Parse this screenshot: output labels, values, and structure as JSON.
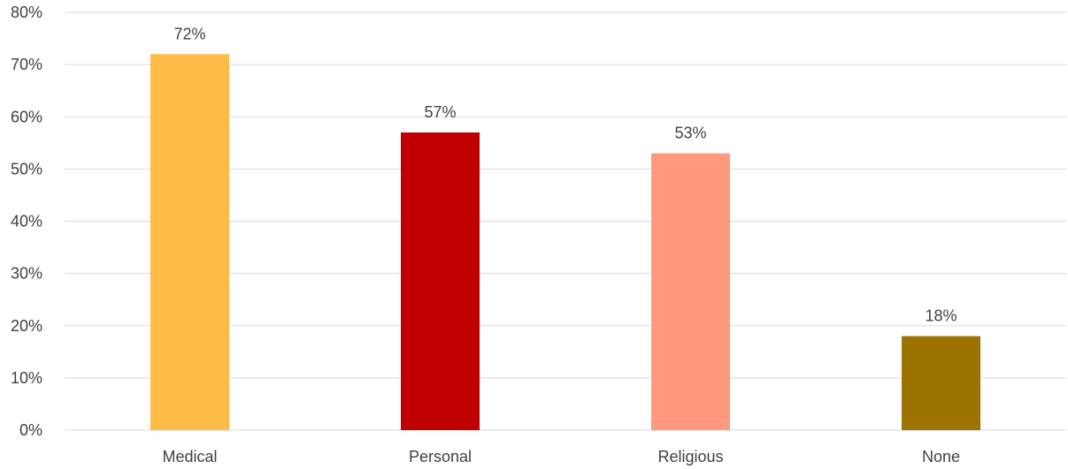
{
  "chart_data": {
    "type": "bar",
    "categories": [
      "Medical",
      "Personal",
      "Religious",
      "None"
    ],
    "values": [
      72,
      57,
      53,
      18
    ],
    "data_labels": [
      "72%",
      "57%",
      "53%",
      "18%"
    ],
    "colors": [
      "#FFBB47",
      "#C00000",
      "#FF9A7E",
      "#9C7300"
    ],
    "ylim": [
      0,
      80
    ],
    "yticks": [
      0,
      10,
      20,
      30,
      40,
      50,
      60,
      70,
      80
    ],
    "ytick_labels": [
      "0%",
      "10%",
      "20%",
      "30%",
      "40%",
      "50%",
      "60%",
      "70%",
      "80%"
    ],
    "grid": true,
    "legend": "none",
    "title": "",
    "xlabel": "",
    "ylabel": ""
  }
}
